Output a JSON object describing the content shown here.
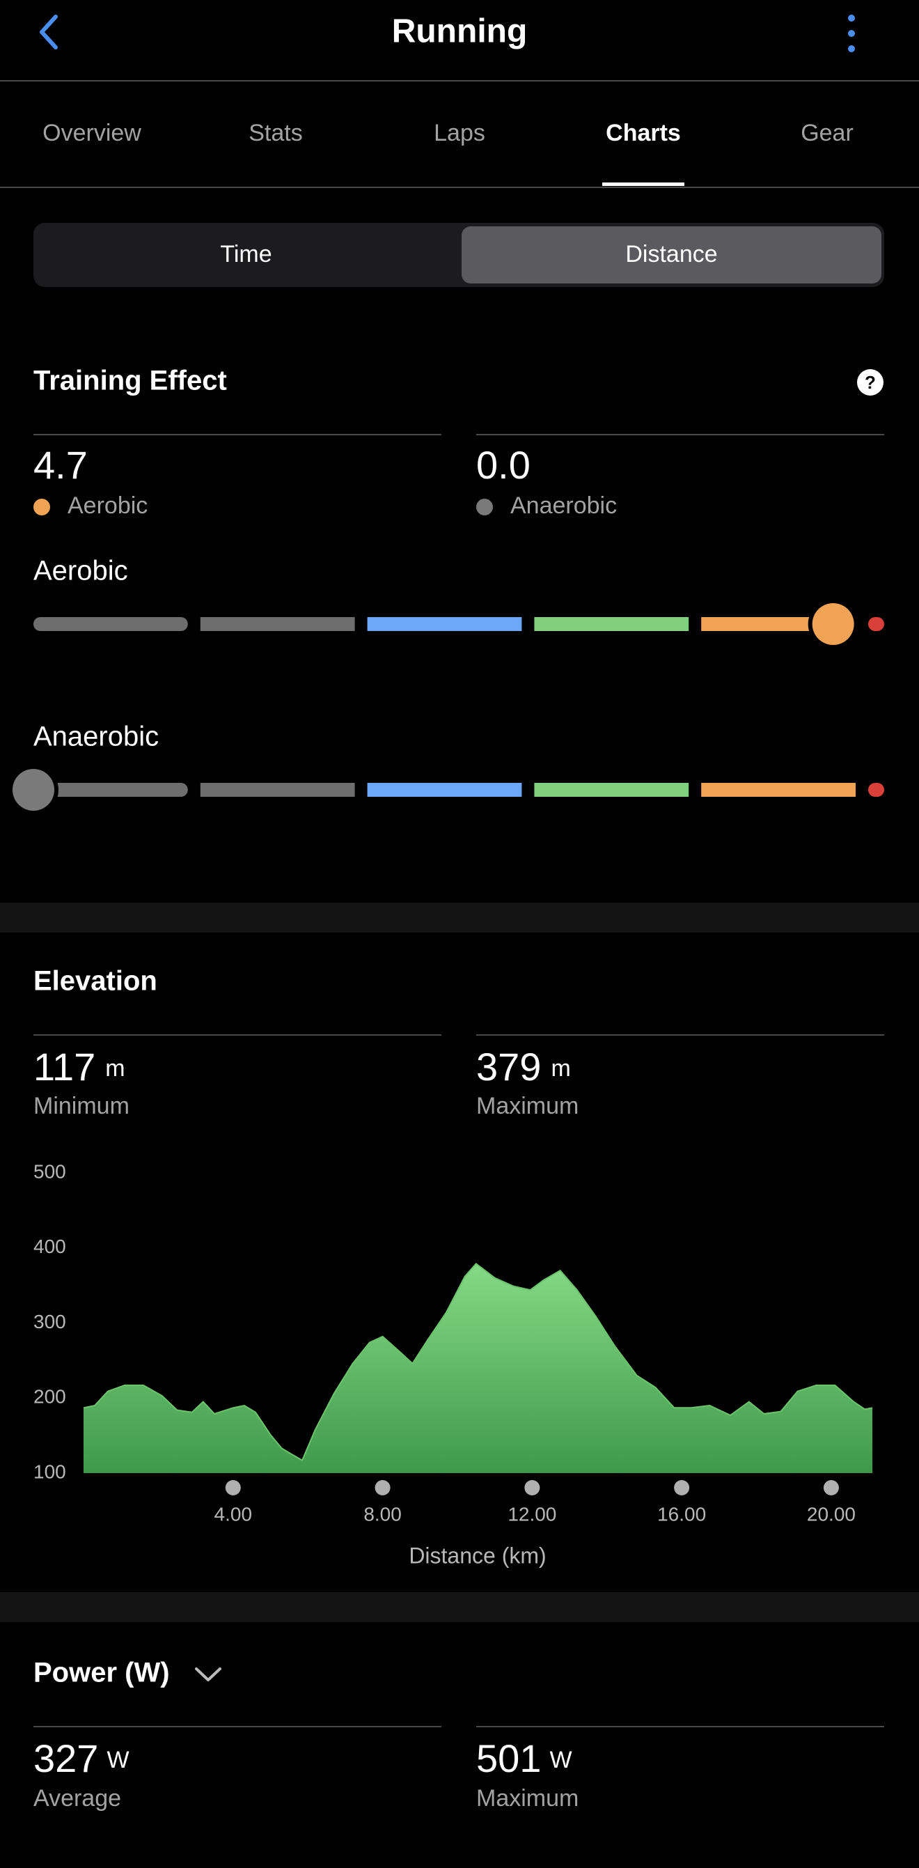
{
  "header": {
    "title": "Running"
  },
  "tabs": {
    "items": [
      "Overview",
      "Stats",
      "Laps",
      "Charts",
      "Gear"
    ],
    "active": 3
  },
  "toggle": {
    "options": [
      "Time",
      "Distance"
    ],
    "selected": 1
  },
  "training_effect": {
    "title": "Training Effect",
    "scale": [
      0,
      5
    ],
    "segment_colors": [
      "#6e6e6e",
      "#6e6e6e",
      "#6ea6f8",
      "#7fcf7f",
      "#f0a355",
      "#d9403a"
    ],
    "aerobic": {
      "value": 4.7,
      "label": "Aerobic",
      "color": "#f0a355"
    },
    "anaerobic": {
      "value": {
        "value": 0,
        "label": "0.0"
      },
      "label": "Anaerobic",
      "color": "#7a7a7a"
    }
  },
  "elevation": {
    "title": "Elevation",
    "unit": "m",
    "minimum": {
      "value": 117,
      "label": "Minimum"
    },
    "maximum": {
      "value": 379,
      "label": "Maximum"
    },
    "chart": {
      "type": "area",
      "color": "#6cc46c",
      "x": [
        0,
        0.3,
        0.65,
        1.1,
        1.6,
        2.1,
        2.5,
        2.9,
        3.2,
        3.5,
        4.0,
        4.3,
        4.6,
        5.0,
        5.3,
        5.5,
        5.85,
        6.2,
        6.7,
        7.2,
        7.65,
        8.0,
        8.45,
        8.8,
        9.2,
        9.7,
        10.2,
        10.5,
        11.0,
        11.5,
        11.95,
        12.3,
        12.75,
        13.2,
        13.7,
        14.2,
        14.8,
        15.3,
        15.8,
        16.25,
        16.75,
        17.3,
        17.8,
        18.2,
        18.65,
        19.1,
        19.6,
        20.1,
        20.6,
        20.9,
        21.1
      ],
      "values": [
        187,
        190,
        209,
        217,
        217,
        203,
        184,
        181,
        195,
        179,
        187,
        190,
        181,
        151,
        133,
        127,
        117,
        158,
        206,
        246,
        274,
        282,
        262,
        246,
        277,
        314,
        362,
        379,
        360,
        349,
        344,
        357,
        370,
        344,
        309,
        270,
        230,
        214,
        187,
        187,
        190,
        177,
        195,
        179,
        182,
        209,
        217,
        217,
        195,
        185,
        187
      ],
      "xlim": [
        0,
        21.1
      ],
      "ylim": [
        100,
        500
      ],
      "xticks": [
        {
          "value": 4,
          "label": "4.00"
        },
        {
          "value": 8,
          "label": "8.00"
        },
        {
          "value": 12,
          "label": "12.00"
        },
        {
          "value": 16,
          "label": "16.00"
        },
        {
          "value": 20,
          "label": "20.00"
        }
      ],
      "yticks": [
        100,
        200,
        300,
        400,
        500
      ],
      "xlabel": "Distance (km)"
    }
  },
  "power": {
    "title": "Power (W)",
    "unit": "W",
    "average": {
      "value": 327,
      "label": "Average"
    },
    "maximum": {
      "value": 501,
      "label": "Maximum"
    }
  }
}
